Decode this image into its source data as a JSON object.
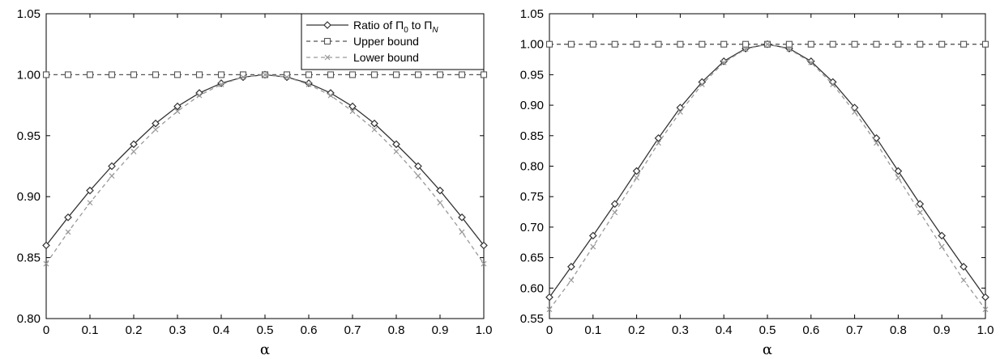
{
  "chart_data": [
    {
      "type": "line",
      "xlabel": "α",
      "ylabel": "",
      "xlim": [
        0,
        1.0
      ],
      "ylim": [
        0.8,
        1.05
      ],
      "xticks": [
        0,
        0.1,
        0.2,
        0.3,
        0.4,
        0.5,
        0.6,
        0.7,
        0.8,
        0.9,
        1.0
      ],
      "xtick_labels": [
        "0",
        "0.1",
        "0.2",
        "0.3",
        "0.4",
        "0.5",
        "0.6",
        "0.7",
        "0.8",
        "0.9",
        "1.0"
      ],
      "yticks": [
        0.8,
        0.85,
        0.9,
        0.95,
        1.0,
        1.05
      ],
      "ytick_labels": [
        "0.80",
        "0.85",
        "0.90",
        "0.95",
        "1.00",
        "1.05"
      ],
      "grid": false,
      "legend": "top-right",
      "x": [
        0,
        0.05,
        0.1,
        0.15,
        0.2,
        0.25,
        0.3,
        0.35,
        0.4,
        0.45,
        0.5,
        0.55,
        0.6,
        0.65,
        0.7,
        0.75,
        0.8,
        0.85,
        0.9,
        0.95,
        1.0
      ],
      "series": [
        {
          "name": "Ratio of Π0 to ΠN",
          "legend_main": "Ratio of Π",
          "legend_sub1": "0",
          "legend_mid": " to Π",
          "legend_sub2": "N",
          "style": "solid",
          "marker": "diamond",
          "color": "#333333",
          "values": [
            0.86,
            0.883,
            0.905,
            0.925,
            0.943,
            0.96,
            0.974,
            0.985,
            0.993,
            0.998,
            1.0,
            0.998,
            0.993,
            0.985,
            0.974,
            0.96,
            0.943,
            0.925,
            0.905,
            0.883,
            0.86
          ]
        },
        {
          "name": "Upper bound",
          "legend_main": "Upper bound",
          "style": "dashed",
          "marker": "square",
          "color": "#555555",
          "values": [
            1.0,
            1.0,
            1.0,
            1.0,
            1.0,
            1.0,
            1.0,
            1.0,
            1.0,
            1.0,
            1.0,
            1.0,
            1.0,
            1.0,
            1.0,
            1.0,
            1.0,
            1.0,
            1.0,
            1.0,
            1.0
          ]
        },
        {
          "name": "Lower bound",
          "legend_main": "Lower bound",
          "style": "dashed",
          "marker": "cross",
          "color": "#999999",
          "values": [
            0.845,
            0.871,
            0.895,
            0.917,
            0.937,
            0.955,
            0.97,
            0.983,
            0.992,
            0.998,
            1.0,
            0.998,
            0.992,
            0.983,
            0.97,
            0.955,
            0.937,
            0.917,
            0.895,
            0.871,
            0.845
          ]
        }
      ]
    },
    {
      "type": "line",
      "xlabel": "α",
      "ylabel": "",
      "xlim": [
        0,
        1.0
      ],
      "ylim": [
        0.55,
        1.05
      ],
      "xticks": [
        0,
        0.1,
        0.2,
        0.3,
        0.4,
        0.5,
        0.6,
        0.7,
        0.8,
        0.9,
        1.0
      ],
      "xtick_labels": [
        "0",
        "0.1",
        "0.2",
        "0.3",
        "0.4",
        "0.5",
        "0.6",
        "0.7",
        "0.8",
        "0.9",
        "1.0"
      ],
      "yticks": [
        0.55,
        0.6,
        0.65,
        0.7,
        0.75,
        0.8,
        0.85,
        0.9,
        0.95,
        1.0,
        1.05
      ],
      "ytick_labels": [
        "0.55",
        "0.60",
        "0.65",
        "0.70",
        "0.75",
        "0.80",
        "0.85",
        "0.90",
        "0.95",
        "1.00",
        "1.05"
      ],
      "grid": false,
      "legend": "none",
      "x": [
        0,
        0.05,
        0.1,
        0.15,
        0.2,
        0.25,
        0.3,
        0.35,
        0.4,
        0.45,
        0.5,
        0.55,
        0.6,
        0.65,
        0.7,
        0.75,
        0.8,
        0.85,
        0.9,
        0.95,
        1.0
      ],
      "series": [
        {
          "style": "solid",
          "marker": "diamond",
          "color": "#333333",
          "values": [
            0.585,
            0.635,
            0.686,
            0.738,
            0.792,
            0.846,
            0.896,
            0.938,
            0.972,
            0.993,
            1.0,
            0.993,
            0.972,
            0.938,
            0.896,
            0.846,
            0.792,
            0.738,
            0.686,
            0.635,
            0.585
          ]
        },
        {
          "style": "dashed",
          "marker": "square",
          "color": "#555555",
          "values": [
            1.0,
            1.0,
            1.0,
            1.0,
            1.0,
            1.0,
            1.0,
            1.0,
            1.0,
            1.0,
            1.0,
            1.0,
            1.0,
            1.0,
            1.0,
            1.0,
            1.0,
            1.0,
            1.0,
            1.0,
            1.0
          ]
        },
        {
          "style": "dashed",
          "marker": "cross",
          "color": "#999999",
          "values": [
            0.565,
            0.613,
            0.668,
            0.724,
            0.781,
            0.838,
            0.889,
            0.934,
            0.97,
            0.992,
            1.0,
            0.992,
            0.97,
            0.934,
            0.889,
            0.838,
            0.781,
            0.724,
            0.668,
            0.613,
            0.565
          ]
        }
      ]
    }
  ]
}
